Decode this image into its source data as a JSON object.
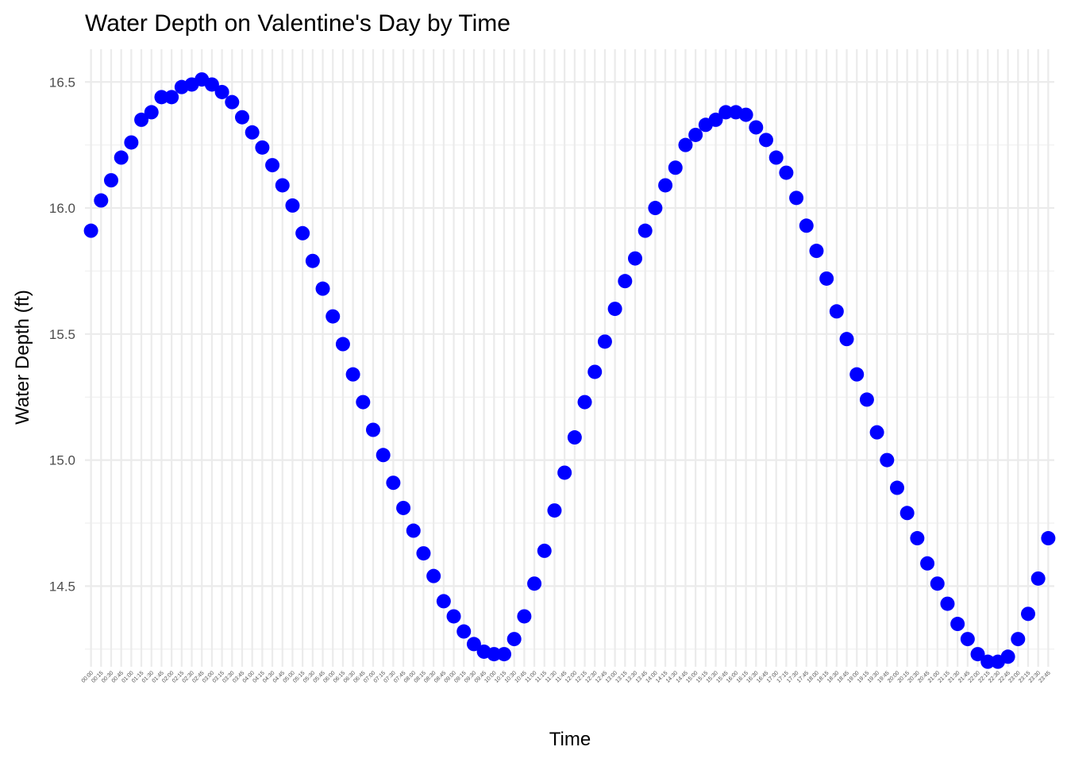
{
  "chart_data": {
    "type": "scatter",
    "title": "Water Depth on Valentine's Day by Time",
    "x_label": "Time",
    "y_label": "Water Depth (ft)",
    "color": "#0000ff",
    "grid": true,
    "categories": [
      "00:00",
      "00:15",
      "00:30",
      "00:45",
      "01:00",
      "01:15",
      "01:30",
      "01:45",
      "02:00",
      "02:15",
      "02:30",
      "02:45",
      "03:00",
      "03:15",
      "03:30",
      "03:45",
      "04:00",
      "04:15",
      "04:30",
      "04:45",
      "05:00",
      "05:15",
      "05:30",
      "05:45",
      "06:00",
      "06:15",
      "06:30",
      "06:45",
      "07:00",
      "07:15",
      "07:30",
      "07:45",
      "08:00",
      "08:15",
      "08:30",
      "08:45",
      "09:00",
      "09:15",
      "09:30",
      "09:45",
      "10:00",
      "10:15",
      "10:30",
      "10:45",
      "11:00",
      "11:15",
      "11:30",
      "11:45",
      "12:00",
      "12:15",
      "12:30",
      "12:45",
      "13:00",
      "13:15",
      "13:30",
      "13:45",
      "14:00",
      "14:15",
      "14:30",
      "14:45",
      "15:00",
      "15:15",
      "15:30",
      "15:45",
      "16:00",
      "16:15",
      "16:30",
      "16:45",
      "17:00",
      "17:15",
      "17:30",
      "17:45",
      "18:00",
      "18:15",
      "18:30",
      "18:45",
      "19:00",
      "19:15",
      "19:30",
      "19:45",
      "20:00",
      "20:15",
      "20:30",
      "20:45",
      "21:00",
      "21:15",
      "21:30",
      "21:45",
      "22:00",
      "22:15",
      "22:30",
      "22:45",
      "23:00",
      "23:15",
      "23:30",
      "23:45"
    ],
    "values": [
      15.91,
      16.03,
      16.11,
      16.2,
      16.26,
      16.35,
      16.38,
      16.44,
      16.44,
      16.48,
      16.49,
      16.51,
      16.49,
      16.46,
      16.42,
      16.36,
      16.3,
      16.24,
      16.17,
      16.09,
      16.01,
      15.9,
      15.79,
      15.68,
      15.57,
      15.46,
      15.34,
      15.23,
      15.12,
      15.02,
      14.91,
      14.81,
      14.72,
      14.63,
      14.54,
      14.44,
      14.38,
      14.32,
      14.27,
      14.24,
      14.23,
      14.23,
      14.29,
      14.38,
      14.51,
      14.64,
      14.8,
      14.95,
      15.09,
      15.23,
      15.35,
      15.47,
      15.6,
      15.71,
      15.8,
      15.91,
      16.0,
      16.09,
      16.16,
      16.25,
      16.29,
      16.33,
      16.35,
      16.38,
      16.38,
      16.37,
      16.32,
      16.27,
      16.2,
      16.14,
      16.04,
      15.93,
      15.83,
      15.72,
      15.59,
      15.48,
      15.34,
      15.24,
      15.11,
      15.0,
      14.89,
      14.79,
      14.69,
      14.59,
      14.51,
      14.43,
      14.35,
      14.29,
      14.23,
      14.2,
      14.2,
      14.22,
      14.29,
      14.39,
      14.53,
      14.69
    ],
    "ylim": [
      14.18,
      16.63
    ],
    "yticks": [
      {
        "value": 14.5,
        "label": "14.5"
      },
      {
        "value": 15,
        "label": "15.0"
      },
      {
        "value": 15.5,
        "label": "15.5"
      },
      {
        "value": 16,
        "label": "16.0"
      },
      {
        "value": 16.5,
        "label": "16.5"
      }
    ]
  }
}
